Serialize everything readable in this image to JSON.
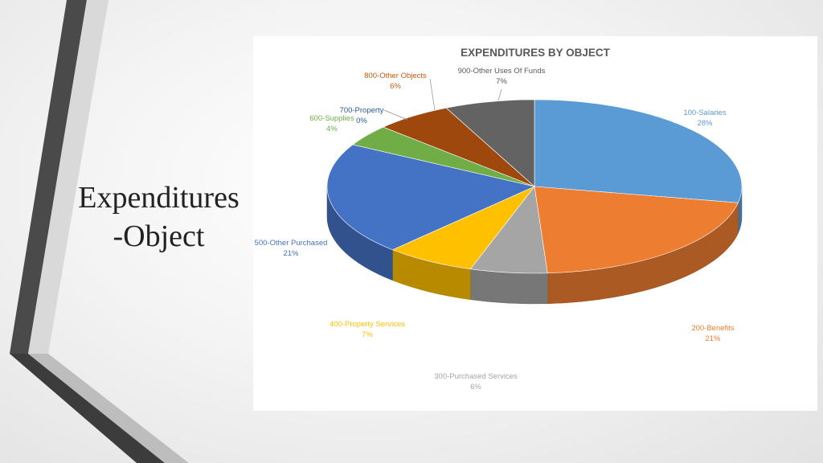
{
  "slide": {
    "title_line1": "Expenditures",
    "title_line2": "-Object"
  },
  "chart_data": {
    "type": "pie",
    "title": "EXPENDITURES BY OBJECT",
    "three_d": true,
    "slices": [
      {
        "label": "100-Salaries",
        "value": 28,
        "percent_label": "28%",
        "color": "#5B9BD5"
      },
      {
        "label": "200-Benefits",
        "value": 21,
        "percent_label": "21%",
        "color": "#ED7D31"
      },
      {
        "label": "300-Purchased Services",
        "value": 6,
        "percent_label": "6%",
        "color": "#A5A5A5"
      },
      {
        "label": "400-Property Services",
        "value": 7,
        "percent_label": "7%",
        "color": "#FFC000"
      },
      {
        "label": "500-Other Purchased",
        "value": 21,
        "percent_label": "21%",
        "color": "#4472C4"
      },
      {
        "label": "600-Supplies",
        "value": 4,
        "percent_label": "4%",
        "color": "#70AD47"
      },
      {
        "label": "700-Property",
        "value": 0,
        "percent_label": "0%",
        "color": "#255E91"
      },
      {
        "label": "800-Other Objects",
        "value": 6,
        "percent_label": "6%",
        "color": "#9E480E"
      },
      {
        "label": "900-Other Uses Of Funds",
        "value": 7,
        "percent_label": "7%",
        "color": "#636363"
      }
    ]
  }
}
